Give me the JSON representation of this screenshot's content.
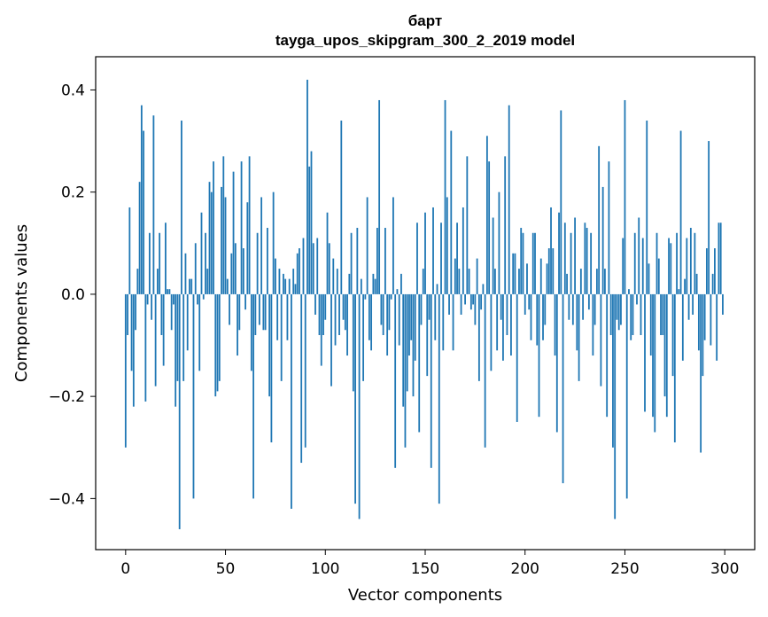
{
  "chart_data": {
    "type": "bar",
    "title": "барт",
    "subtitle": "tayga_upos_skipgram_300_2_2019 model",
    "xlabel": "Vector components",
    "ylabel": "Components values",
    "xlim": [
      -15,
      315
    ],
    "ylim": [
      -0.5,
      0.465
    ],
    "xticks": [
      0,
      50,
      100,
      150,
      200,
      250,
      300
    ],
    "yticks": [
      -0.4,
      -0.2,
      0.0,
      0.2,
      0.4
    ],
    "ytick_labels": [
      "−0.4",
      "−0.2",
      "0.0",
      "0.2",
      "0.4"
    ],
    "bar_color": "#1f77b4",
    "values": [
      -0.3,
      -0.08,
      0.17,
      -0.15,
      -0.22,
      -0.07,
      0.05,
      0.22,
      0.37,
      0.32,
      -0.21,
      -0.02,
      0.12,
      -0.05,
      0.35,
      -0.18,
      0.05,
      0.12,
      -0.08,
      -0.14,
      0.14,
      0.01,
      0.01,
      -0.07,
      -0.02,
      -0.22,
      -0.17,
      -0.46,
      0.34,
      -0.17,
      0.08,
      -0.11,
      0.03,
      0.03,
      -0.4,
      0.1,
      -0.02,
      -0.15,
      0.16,
      -0.01,
      0.12,
      0.05,
      0.22,
      0.2,
      0.26,
      -0.2,
      -0.19,
      -0.17,
      0.21,
      0.27,
      0.19,
      0.03,
      -0.06,
      0.08,
      0.24,
      0.1,
      -0.12,
      -0.07,
      0.26,
      0.09,
      -0.03,
      0.18,
      0.27,
      -0.15,
      -0.4,
      -0.08,
      0.12,
      -0.06,
      0.19,
      -0.07,
      -0.07,
      0.13,
      -0.2,
      -0.29,
      0.2,
      0.07,
      -0.09,
      0.05,
      -0.17,
      0.04,
      0.03,
      -0.09,
      0.03,
      -0.42,
      0.05,
      0.02,
      0.08,
      0.09,
      -0.33,
      0.11,
      -0.3,
      0.42,
      0.25,
      0.28,
      0.1,
      -0.04,
      0.11,
      -0.08,
      -0.14,
      -0.08,
      -0.05,
      0.16,
      0.1,
      -0.18,
      0.07,
      -0.1,
      0.05,
      -0.08,
      0.34,
      -0.05,
      -0.07,
      -0.12,
      0.04,
      0.12,
      -0.19,
      -0.41,
      0.13,
      -0.44,
      0.03,
      -0.17,
      -0.01,
      0.19,
      -0.09,
      -0.11,
      0.04,
      0.03,
      0.13,
      0.38,
      -0.06,
      -0.08,
      0.13,
      -0.12,
      -0.07,
      -0.01,
      0.19,
      -0.34,
      0.01,
      -0.1,
      0.04,
      -0.22,
      -0.3,
      -0.19,
      -0.12,
      -0.09,
      -0.2,
      -0.13,
      0.14,
      -0.27,
      -0.06,
      0.05,
      0.16,
      -0.16,
      -0.05,
      -0.34,
      0.17,
      -0.09,
      0.02,
      -0.41,
      0.14,
      -0.11,
      0.38,
      0.19,
      -0.04,
      0.32,
      -0.11,
      0.07,
      0.14,
      0.05,
      -0.04,
      0.17,
      -0.02,
      0.27,
      0.05,
      -0.03,
      -0.02,
      -0.06,
      0.07,
      -0.17,
      -0.03,
      0.02,
      -0.3,
      0.31,
      0.26,
      -0.15,
      0.15,
      0.05,
      -0.11,
      0.2,
      -0.05,
      -0.13,
      0.27,
      -0.08,
      0.37,
      -0.12,
      0.08,
      0.08,
      -0.25,
      0.05,
      0.13,
      0.12,
      -0.04,
      0.06,
      -0.03,
      -0.09,
      0.12,
      0.12,
      -0.1,
      -0.24,
      0.07,
      -0.09,
      -0.06,
      0.06,
      0.09,
      0.17,
      0.09,
      -0.12,
      -0.27,
      0.16,
      0.36,
      -0.37,
      0.14,
      0.04,
      -0.05,
      0.12,
      -0.06,
      0.15,
      -0.11,
      -0.17,
      0.05,
      -0.05,
      0.14,
      0.13,
      -0.03,
      0.12,
      -0.12,
      -0.06,
      0.05,
      0.29,
      -0.18,
      0.21,
      0.05,
      -0.24,
      0.26,
      -0.08,
      -0.3,
      -0.44,
      -0.05,
      -0.07,
      -0.06,
      0.11,
      0.38,
      -0.4,
      0.01,
      -0.09,
      -0.08,
      0.12,
      -0.02,
      0.15,
      -0.08,
      0.11,
      -0.23,
      0.34,
      0.06,
      -0.12,
      -0.24,
      -0.27,
      0.12,
      0.07,
      -0.08,
      -0.08,
      -0.2,
      -0.24,
      0.11,
      0.1,
      -0.16,
      -0.29,
      0.12,
      0.01,
      0.32,
      -0.13,
      0.03,
      0.11,
      -0.05,
      0.13,
      -0.04,
      0.12,
      0.04,
      -0.11,
      -0.31,
      -0.16,
      -0.09,
      0.09,
      0.3,
      -0.1,
      0.04,
      0.09,
      -0.13,
      0.14,
      0.14,
      -0.04
    ]
  }
}
